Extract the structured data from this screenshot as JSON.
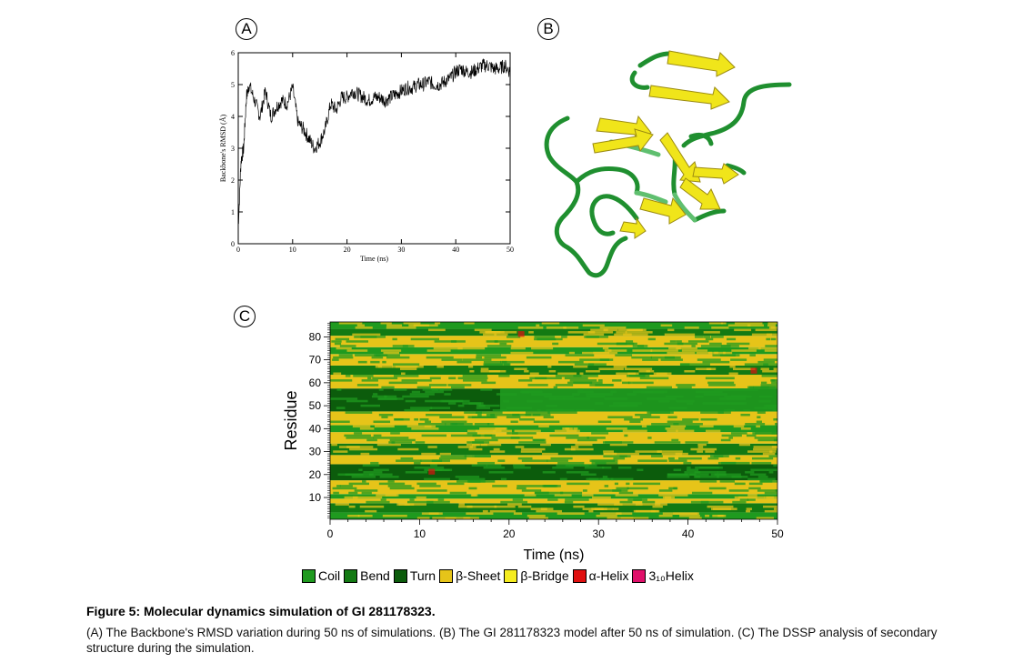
{
  "figure": {
    "title": "Figure 5: Molecular dynamics simulation of GI 281178323.",
    "caption": "(A) The Backbone's RMSD variation during 50 ns of simulations. (B) The GI 281178323 model after 50 ns of simulation. (C) The DSSP analysis of secondary structure during the simulation."
  },
  "panels": {
    "a_label": "A",
    "b_label": "B",
    "c_label": "C"
  },
  "chart_data": [
    {
      "type": "line",
      "panel": "A",
      "xlabel": "Time (ns)",
      "ylabel": "Backbone's RMSD (Å)",
      "xlim": [
        0,
        50
      ],
      "ylim": [
        0,
        6
      ],
      "xticks": [
        0,
        10,
        20,
        30,
        40,
        50
      ],
      "yticks": [
        0,
        1,
        2,
        3,
        4,
        5,
        6
      ],
      "x": [
        0,
        0.5,
        1,
        1.5,
        2,
        3,
        4,
        5,
        6,
        7,
        8,
        9,
        10,
        11,
        12,
        13,
        14,
        15,
        16,
        17,
        18,
        19,
        20,
        21,
        22,
        23,
        24,
        25,
        26,
        27,
        28,
        29,
        30,
        31,
        32,
        33,
        34,
        35,
        36,
        37,
        38,
        39,
        40,
        41,
        42,
        43,
        44,
        45,
        46,
        47,
        48,
        49,
        50
      ],
      "y": [
        0.5,
        2.6,
        3.0,
        4.6,
        5.0,
        4.5,
        4.0,
        4.8,
        4.0,
        4.3,
        4.5,
        4.4,
        4.9,
        3.8,
        3.6,
        3.3,
        3.0,
        3.2,
        3.6,
        4.4,
        4.2,
        4.6,
        4.6,
        4.8,
        4.7,
        4.6,
        4.5,
        4.6,
        4.6,
        4.5,
        4.6,
        4.7,
        4.8,
        4.9,
        4.9,
        5.0,
        5.0,
        5.1,
        5.0,
        5.0,
        5.1,
        5.2,
        5.4,
        5.5,
        5.4,
        5.4,
        5.5,
        5.6,
        5.6,
        5.5,
        5.5,
        5.6,
        5.4
      ]
    },
    {
      "type": "heatmap",
      "panel": "C",
      "xlabel": "Time (ns)",
      "ylabel": "Residue",
      "xlim": [
        0,
        50
      ],
      "ylim": [
        1,
        86
      ],
      "xticks": [
        0,
        10,
        20,
        30,
        40,
        50
      ],
      "yticks": [
        10,
        20,
        30,
        40,
        50,
        60,
        70,
        80
      ],
      "legend": [
        {
          "name": "Coil",
          "color": "#1f9a1f"
        },
        {
          "name": "Bend",
          "color": "#137a13"
        },
        {
          "name": "Turn",
          "color": "#0c5c0c"
        },
        {
          "name": "β-Sheet",
          "color": "#e6c419"
        },
        {
          "name": "β-Bridge",
          "color": "#f5ec1f"
        },
        {
          "name": "α-Helix",
          "color": "#e01010"
        },
        {
          "name": "3₁₀Helix",
          "color": "#e0106a"
        }
      ],
      "rows": [
        {
          "from": 1,
          "to": 3,
          "state": "Coil"
        },
        {
          "from": 4,
          "to": 7,
          "state": "Bend"
        },
        {
          "from": 8,
          "to": 9,
          "state": "β-Sheet"
        },
        {
          "from": 10,
          "to": 11,
          "state": "Coil"
        },
        {
          "from": 12,
          "to": 17,
          "state": "β-Sheet"
        },
        {
          "from": 18,
          "to": 24,
          "state": "Turn"
        },
        {
          "from": 25,
          "to": 28,
          "state": "β-Sheet"
        },
        {
          "from": 29,
          "to": 33,
          "state": "Bend"
        },
        {
          "from": 34,
          "to": 38,
          "state": "β-Sheet"
        },
        {
          "from": 39,
          "to": 41,
          "state": "Coil"
        },
        {
          "from": 42,
          "to": 47,
          "state": "β-Sheet"
        },
        {
          "from": 48,
          "to": 57,
          "state": "Turn"
        },
        {
          "from": 58,
          "to": 63,
          "state": "β-Sheet"
        },
        {
          "from": 64,
          "to": 67,
          "state": "Bend"
        },
        {
          "from": 68,
          "to": 72,
          "state": "β-Sheet"
        },
        {
          "from": 73,
          "to": 75,
          "state": "Coil"
        },
        {
          "from": 76,
          "to": 80,
          "state": "β-Sheet"
        },
        {
          "from": 81,
          "to": 83,
          "state": "Bend"
        },
        {
          "from": 84,
          "to": 86,
          "state": "Coil"
        }
      ],
      "colors": {
        "Coil": "#1f9a1f",
        "Bend": "#137a13",
        "Turn": "#0c5c0c",
        "β-Sheet": "#e6c419",
        "β-Bridge": "#f5ec1f",
        "α-Helix": "#e01010",
        "3₁₀Helix": "#e0106a"
      }
    }
  ]
}
